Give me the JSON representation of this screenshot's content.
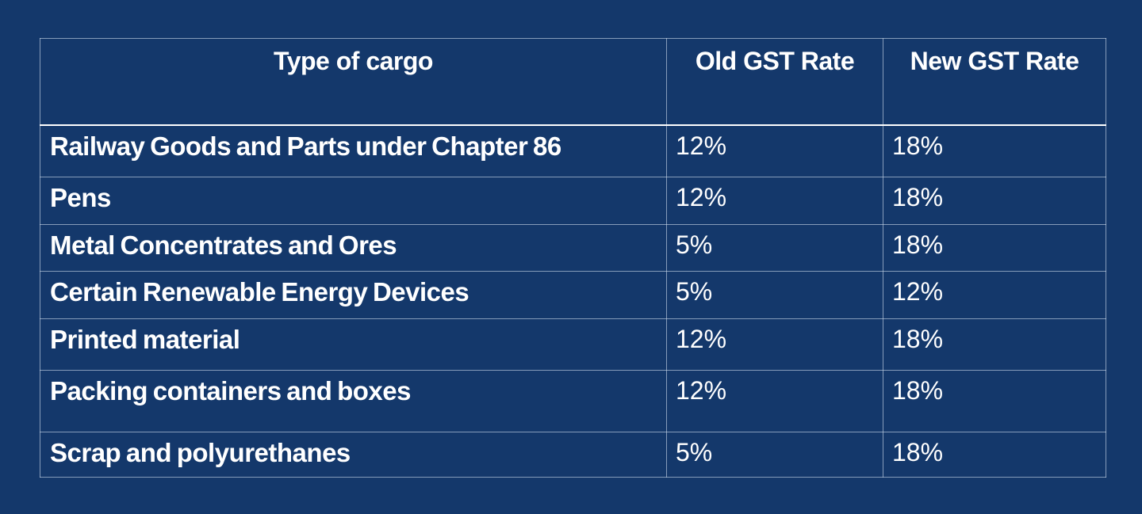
{
  "colors": {
    "background": "#14386B",
    "text": "#FFFFFF",
    "grid_line": "rgba(210,223,238,0.60)",
    "header_underline": "#FFFFFF"
  },
  "table": {
    "headers": [
      "Type of cargo",
      "Old GST Rate",
      "New GST Rate"
    ],
    "rows": [
      {
        "cargo": "Railway Goods and Parts under Chapter 86",
        "old": "12%",
        "new": "18%"
      },
      {
        "cargo": "Pens",
        "old": "12%",
        "new": "18%"
      },
      {
        "cargo": "Metal Concentrates and Ores",
        "old": "5%",
        "new": "18%"
      },
      {
        "cargo": "Certain Renewable Energy Devices",
        "old": "5%",
        "new": "12%"
      },
      {
        "cargo": "Printed material",
        "old": "12%",
        "new": "18%"
      },
      {
        "cargo": "Packing containers and boxes",
        "old": "12%",
        "new": "18%"
      },
      {
        "cargo": "Scrap and polyurethanes",
        "old": "5%",
        "new": "18%"
      }
    ]
  },
  "chart_data": {
    "type": "table",
    "title": "",
    "columns": [
      "Type of cargo",
      "Old GST Rate",
      "New GST Rate"
    ],
    "rows": [
      [
        "Railway Goods and Parts under Chapter 86",
        "12%",
        "18%"
      ],
      [
        "Pens",
        "12%",
        "18%"
      ],
      [
        "Metal Concentrates and Ores",
        "5%",
        "18%"
      ],
      [
        "Certain Renewable Energy Devices",
        "5%",
        "12%"
      ],
      [
        "Printed material",
        "12%",
        "18%"
      ],
      [
        "Packing containers and boxes",
        "12%",
        "18%"
      ],
      [
        "Scrap and polyurethanes",
        "5%",
        "18%"
      ]
    ],
    "layout": {
      "grid": true,
      "header_row": true,
      "text_color": "#FFFFFF",
      "background": "#14386B"
    }
  }
}
